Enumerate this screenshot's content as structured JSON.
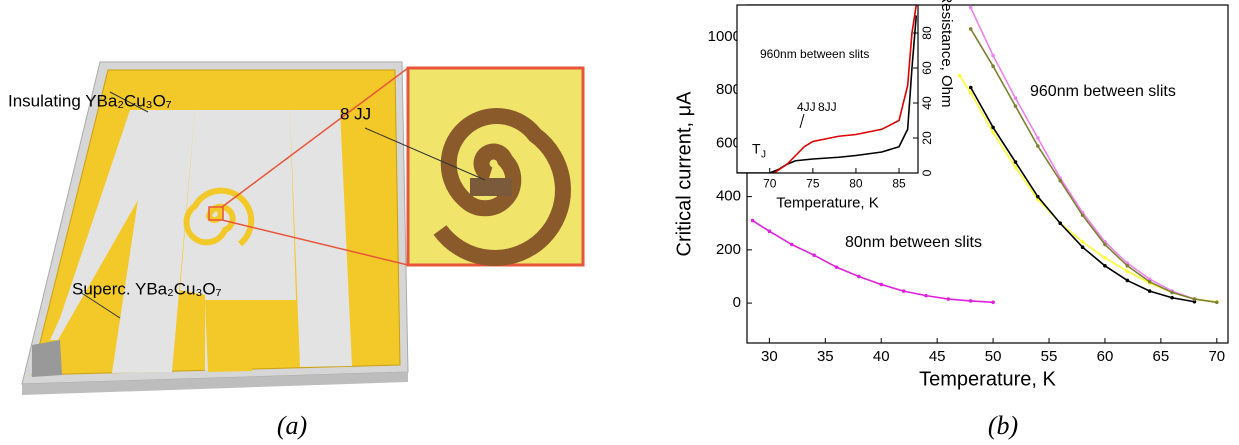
{
  "panel_a": {
    "insulating": "Insulating YBa₂Cu₃O₇",
    "superconducting": "Superc. YBa₂Cu₃O₇",
    "junctions": "8 JJ",
    "caption": "(a)"
  },
  "panel_b_caption": "(b)",
  "chart_data": [
    {
      "type": "line",
      "xlabel": "Temperature, K",
      "ylabel": "Critical current, μA",
      "xlim": [
        28,
        71
      ],
      "ylim": [
        -150,
        1120
      ],
      "xticks": [
        30,
        35,
        40,
        45,
        50,
        55,
        60,
        65,
        70
      ],
      "yticks": [
        0,
        200,
        400,
        600,
        800,
        1000
      ],
      "annotations": [
        "80nm between slits",
        "960nm between slits"
      ],
      "series": [
        {
          "color": "#e020e0",
          "x": [
            28.5,
            30,
            32,
            34,
            36,
            38,
            40,
            42,
            44,
            46,
            48,
            50
          ],
          "values": [
            310,
            270,
            220,
            180,
            135,
            100,
            70,
            45,
            28,
            15,
            8,
            3
          ]
        },
        {
          "color": "#ffff33",
          "x": [
            47,
            48,
            50,
            52,
            54,
            56,
            58,
            60,
            62,
            64,
            66,
            68,
            70
          ],
          "values": [
            855,
            790,
            640,
            510,
            390,
            300,
            230,
            170,
            120,
            75,
            40,
            15,
            5
          ]
        },
        {
          "color": "#000000",
          "x": [
            48,
            50,
            52,
            54,
            56,
            58,
            60,
            62,
            64,
            66,
            68
          ],
          "values": [
            810,
            660,
            530,
            400,
            300,
            210,
            140,
            85,
            45,
            20,
            5
          ]
        },
        {
          "color": "#ee82ee",
          "x": [
            48,
            50,
            52,
            54,
            56,
            58,
            60,
            62,
            64,
            66,
            68
          ],
          "values": [
            1110,
            930,
            770,
            620,
            470,
            340,
            230,
            150,
            90,
            45,
            15
          ]
        },
        {
          "color": "#808033",
          "x": [
            48,
            50,
            52,
            54,
            56,
            58,
            60,
            62,
            64,
            66,
            68,
            70
          ],
          "values": [
            1030,
            890,
            740,
            590,
            460,
            330,
            220,
            140,
            80,
            40,
            15,
            3
          ]
        }
      ]
    },
    {
      "type": "line",
      "xlabel": "Temperature, K",
      "ylabel": "Resistance, Ohm",
      "yaxis_side": "right",
      "xlim": [
        66.2,
        87.2
      ],
      "ylim": [
        0,
        96
      ],
      "xticks": [
        70,
        75,
        80,
        85
      ],
      "yticks": [
        0,
        20,
        40,
        60,
        80
      ],
      "annotations": [
        "960nm between slits",
        "4JJ",
        "8JJ"
      ],
      "tj": {
        "main": "T",
        "sub": "J"
      },
      "series": [
        {
          "color": "#000000",
          "x": [
            66.2,
            70,
            71,
            72,
            73,
            75,
            78,
            80,
            83,
            85,
            86,
            86.5,
            87
          ],
          "values": [
            0,
            0,
            2,
            5,
            7,
            8,
            9,
            10,
            12,
            15,
            25,
            60,
            90
          ]
        },
        {
          "color": "#dd0000",
          "x": [
            70.5,
            72,
            73,
            74,
            75,
            78,
            80,
            83,
            85,
            86,
            86.5,
            87
          ],
          "values": [
            0,
            5,
            10,
            15,
            18,
            21,
            22,
            25,
            30,
            50,
            80,
            96
          ]
        }
      ]
    }
  ]
}
